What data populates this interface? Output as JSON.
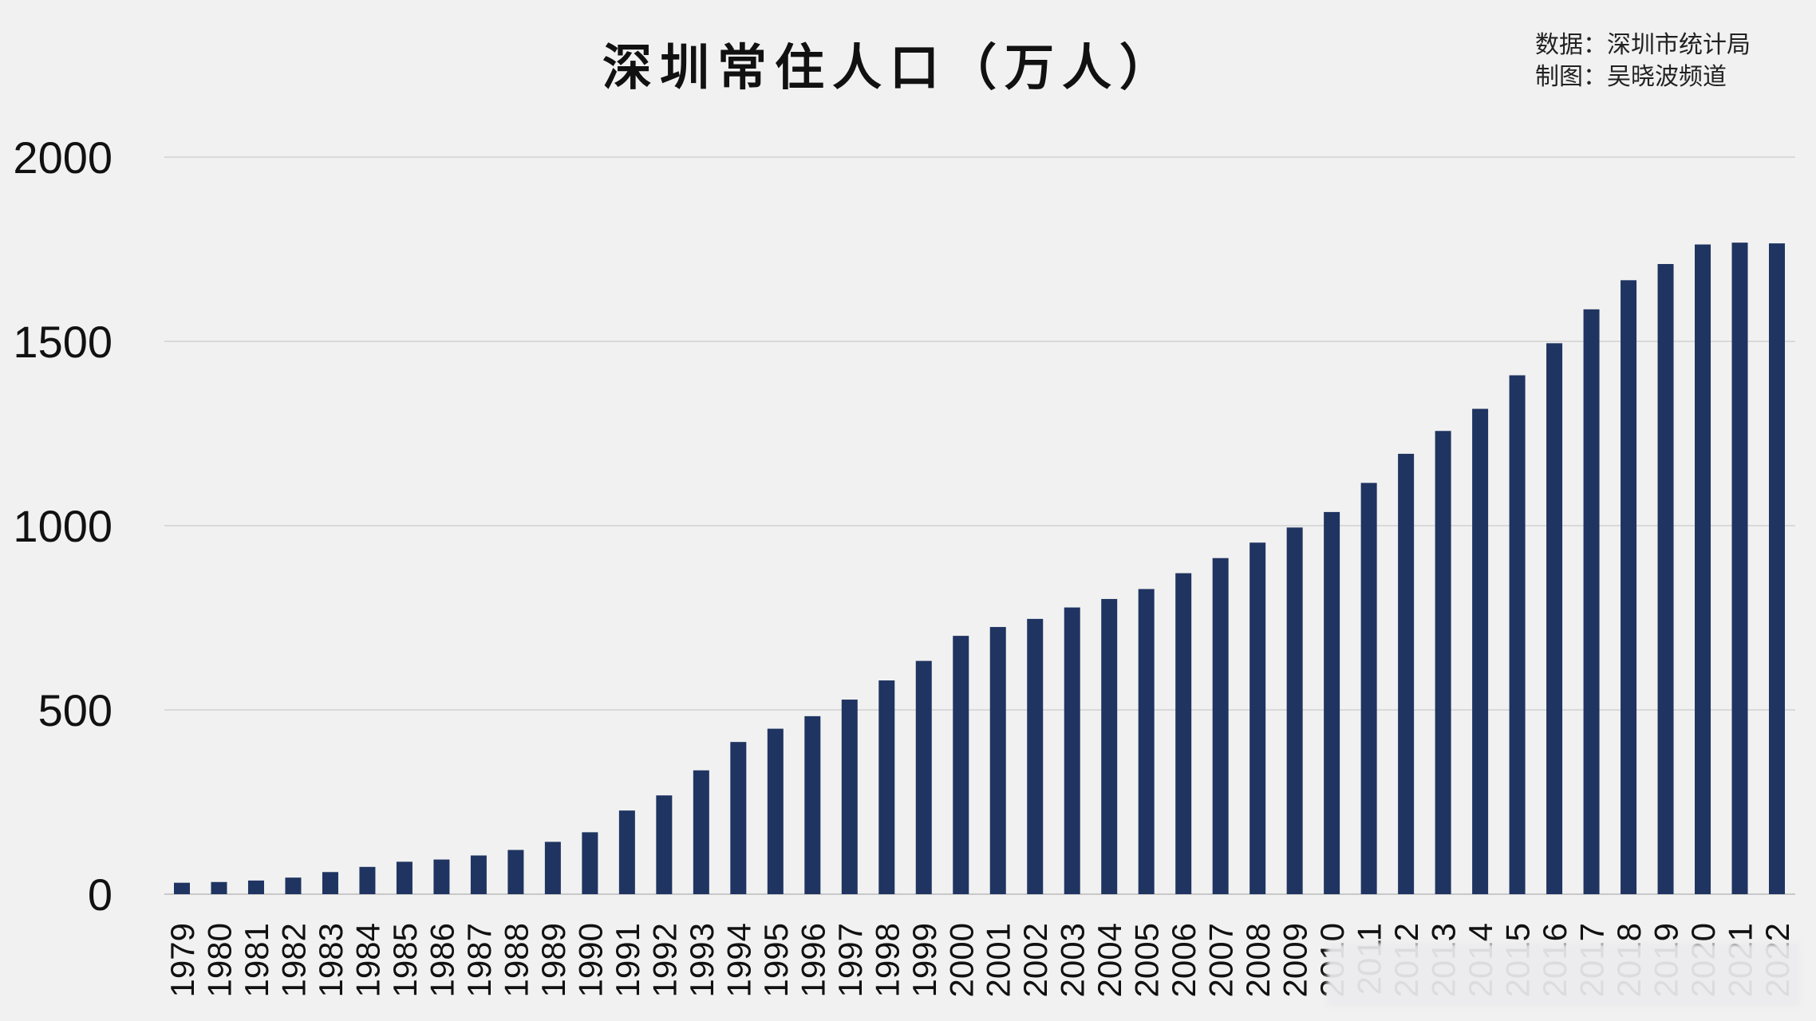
{
  "chart_data": {
    "type": "bar",
    "title": "深圳常住人口（万人）",
    "source_lines": [
      "数据：深圳市统计局",
      "制图：吴晓波频道"
    ],
    "xlabel": "",
    "ylabel": "",
    "ylim": [
      0,
      2000
    ],
    "yticks": [
      0,
      500,
      1000,
      1500,
      2000
    ],
    "grid": true,
    "bar_color": "#1f3461",
    "categories": [
      "1979",
      "1980",
      "1981",
      "1982",
      "1983",
      "1984",
      "1985",
      "1986",
      "1987",
      "1988",
      "1989",
      "1990",
      "1991",
      "1992",
      "1993",
      "1994",
      "1995",
      "1996",
      "1997",
      "1998",
      "1999",
      "2000",
      "2001",
      "2002",
      "2003",
      "2004",
      "2005",
      "2006",
      "2007",
      "2008",
      "2009",
      "2010",
      "2011",
      "2012",
      "2013",
      "2014",
      "2015",
      "2016",
      "2017",
      "2018",
      "2019",
      "2020",
      "2021",
      "2022"
    ],
    "values": [
      31,
      33,
      37,
      45,
      60,
      74,
      88,
      94,
      105,
      120,
      142,
      168,
      227,
      268,
      336,
      413,
      449,
      483,
      528,
      580,
      633,
      701,
      725,
      747,
      778,
      801,
      828,
      871,
      912,
      954,
      995,
      1037,
      1116,
      1195,
      1257,
      1317,
      1408,
      1495,
      1587,
      1666,
      1710,
      1763,
      1768,
      1766
    ]
  }
}
